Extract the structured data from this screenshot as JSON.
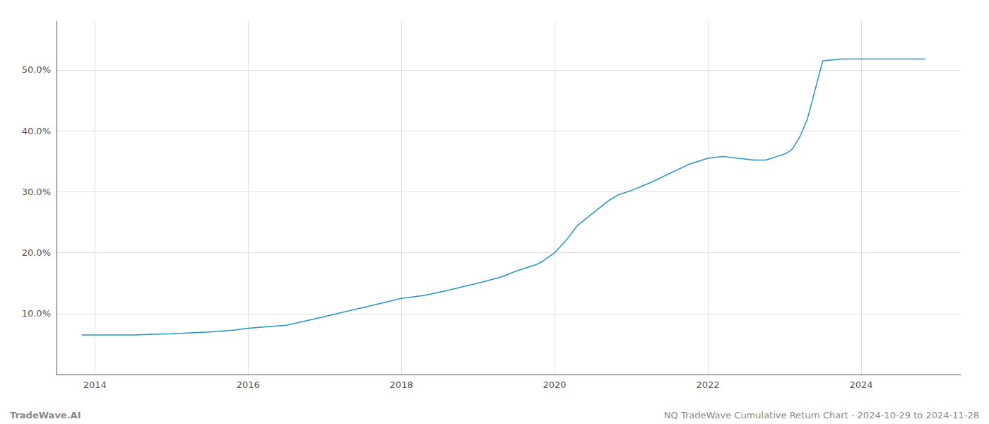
{
  "chart_data": {
    "type": "line",
    "x": [
      2013.83,
      2014.0,
      2014.5,
      2015.0,
      2015.5,
      2015.83,
      2016.0,
      2016.5,
      2017.0,
      2017.5,
      2018.0,
      2018.3,
      2018.6,
      2018.83,
      2019.0,
      2019.3,
      2019.5,
      2019.75,
      2019.83,
      2020.0,
      2020.15,
      2020.3,
      2020.5,
      2020.7,
      2020.83,
      2021.0,
      2021.25,
      2021.5,
      2021.75,
      2022.0,
      2022.2,
      2022.4,
      2022.6,
      2022.75,
      2022.83,
      2022.9,
      2023.0,
      2023.05,
      2023.1,
      2023.2,
      2023.3,
      2023.5,
      2023.75,
      2024.0,
      2024.5,
      2024.83
    ],
    "values": [
      6.5,
      6.5,
      6.5,
      6.7,
      7.0,
      7.3,
      7.6,
      8.1,
      9.5,
      11.0,
      12.5,
      13.0,
      13.8,
      14.5,
      15.0,
      16.0,
      17.0,
      18.0,
      18.5,
      20.0,
      22.0,
      24.5,
      26.5,
      28.5,
      29.5,
      30.2,
      31.5,
      33.0,
      34.5,
      35.5,
      35.8,
      35.5,
      35.2,
      35.2,
      35.5,
      35.8,
      36.2,
      36.5,
      37.0,
      39.0,
      42.0,
      51.5,
      51.8,
      51.8,
      51.8,
      51.8
    ],
    "color": "#2196c4",
    "xlim": [
      2013.5,
      2025.3
    ],
    "xticks": [
      2014,
      2016,
      2018,
      2020,
      2022,
      2024
    ],
    "ylim": [
      0,
      58
    ],
    "yticks": [
      {
        "value": 10.0,
        "label": "10.0%"
      },
      {
        "value": 20.0,
        "label": "20.0%"
      },
      {
        "value": 30.0,
        "label": "30.0%"
      },
      {
        "value": 40.0,
        "label": "40.0%"
      },
      {
        "value": 50.0,
        "label": "50.0%"
      }
    ],
    "grid": true,
    "annotations": [
      "TradeWave.AI",
      "NQ TradeWave Cumulative Return Chart - 2024-10-29 to 2024-11-28"
    ]
  }
}
